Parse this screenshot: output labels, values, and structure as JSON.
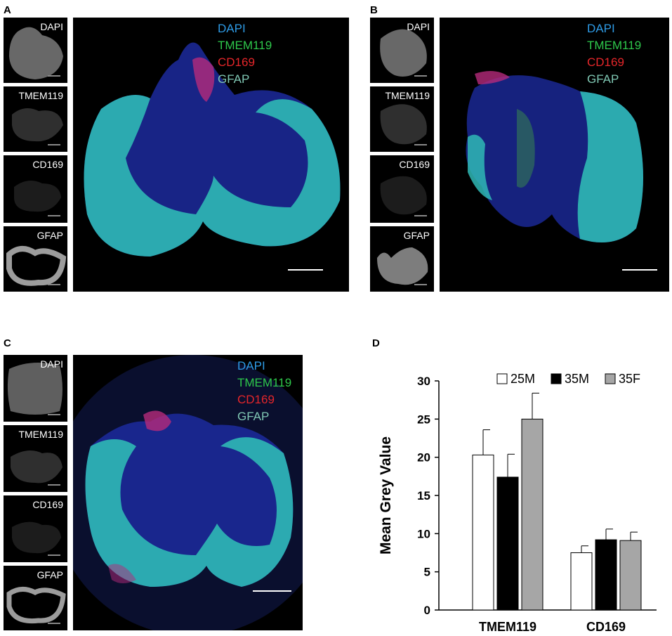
{
  "panels": [
    {
      "label": "A",
      "thumbs": [
        "DAPI",
        "TMEM119",
        "CD169",
        "GFAP"
      ],
      "legend": [
        {
          "text": "DAPI",
          "color": "#2e9be6"
        },
        {
          "text": "TMEM119",
          "color": "#2ec84b"
        },
        {
          "text": "CD169",
          "color": "#e6262a"
        },
        {
          "text": "GFAP",
          "color": "#80c8b4"
        }
      ]
    },
    {
      "label": "B",
      "thumbs": [
        "DAPI",
        "TMEM119",
        "CD169",
        "GFAP"
      ],
      "legend": [
        {
          "text": "DAPI",
          "color": "#2e9be6"
        },
        {
          "text": "TMEM119",
          "color": "#2ec84b"
        },
        {
          "text": "CD169",
          "color": "#e6262a"
        },
        {
          "text": "GFAP",
          "color": "#80c8b4"
        }
      ]
    },
    {
      "label": "C",
      "thumbs": [
        "DAPI",
        "TMEM119",
        "CD169",
        "GFAP"
      ],
      "legend": [
        {
          "text": "DAPI",
          "color": "#2e9be6"
        },
        {
          "text": "TMEM119",
          "color": "#2ec84b"
        },
        {
          "text": "CD169",
          "color": "#e6262a"
        },
        {
          "text": "GFAP",
          "color": "#80c8b4"
        }
      ]
    }
  ],
  "chart_panel_label": "D",
  "chart_data": {
    "type": "bar",
    "categories": [
      "TMEM119",
      "CD169"
    ],
    "ylabel": "Mean Grey Value",
    "xlabel": "",
    "ylim": [
      0,
      30
    ],
    "yticks": [
      "0",
      "5",
      "10",
      "15",
      "20",
      "25",
      "30"
    ],
    "legend_position": "top",
    "grid": false,
    "series": [
      {
        "name": "25M",
        "color": "#ffffff",
        "values": [
          20.3,
          7.5
        ],
        "errors": [
          3.3,
          0.9
        ]
      },
      {
        "name": "35M",
        "color": "#000000",
        "values": [
          17.4,
          9.2
        ],
        "errors": [
          3.0,
          1.4
        ]
      },
      {
        "name": "35F",
        "color": "#a6a6a6",
        "values": [
          25.0,
          9.1
        ],
        "errors": [
          3.4,
          1.1
        ]
      }
    ]
  }
}
